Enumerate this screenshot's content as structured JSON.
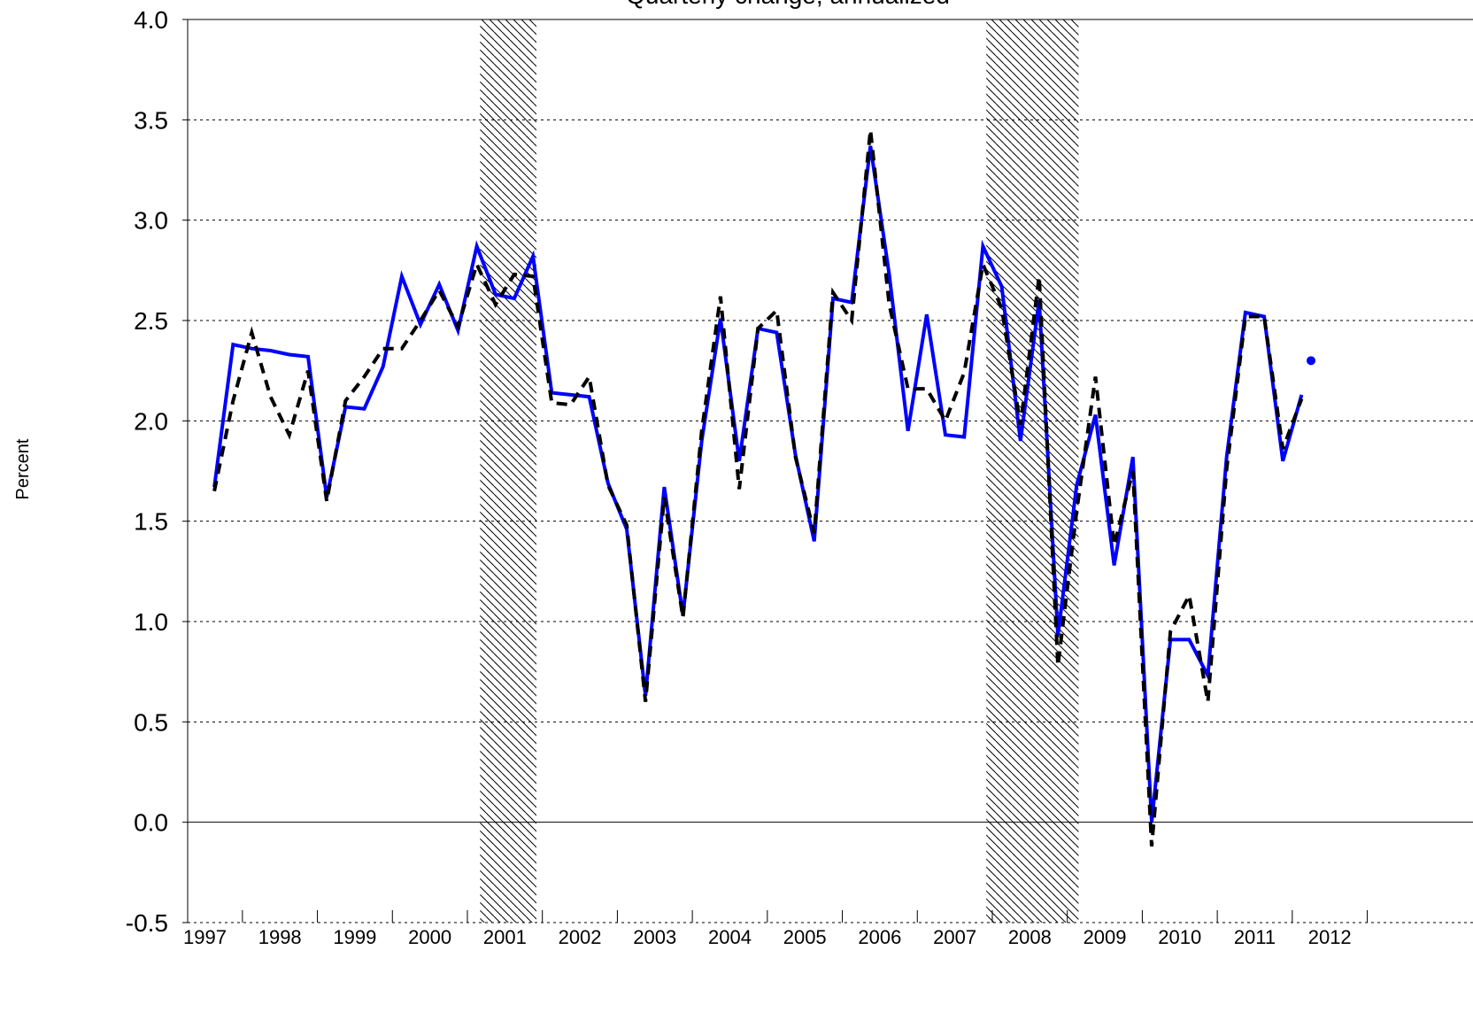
{
  "chart_data": {
    "type": "line",
    "title": "Quarterly change, annualized",
    "y_label": "Percent",
    "x": [
      1997.625,
      1997.875,
      1998.125,
      1998.375,
      1998.625,
      1998.875,
      1999.125,
      1999.375,
      1999.625,
      1999.875,
      2000.125,
      2000.375,
      2000.625,
      2000.875,
      2001.125,
      2001.375,
      2001.625,
      2001.875,
      2002.125,
      2002.375,
      2002.625,
      2002.875,
      2003.125,
      2003.375,
      2003.625,
      2003.875,
      2004.125,
      2004.375,
      2004.625,
      2004.875,
      2005.125,
      2005.375,
      2005.625,
      2005.875,
      2006.125,
      2006.375,
      2006.625,
      2006.875,
      2007.125,
      2007.375,
      2007.625,
      2007.875,
      2008.125,
      2008.375,
      2008.625,
      2008.875,
      2009.125,
      2009.375,
      2009.625,
      2009.875,
      2010.125,
      2010.375,
      2010.625,
      2010.875,
      2011.125,
      2011.375,
      2011.625,
      2011.875,
      2012.125
    ],
    "series": [
      {
        "color": "#0000ff",
        "style": "solid",
        "values": [
          1.67,
          2.38,
          2.36,
          2.35,
          2.33,
          2.32,
          1.62,
          2.07,
          2.06,
          2.27,
          2.72,
          2.48,
          2.68,
          2.45,
          2.87,
          2.63,
          2.61,
          2.82,
          2.14,
          2.13,
          2.12,
          1.69,
          1.46,
          0.63,
          1.67,
          1.03,
          1.9,
          2.51,
          1.8,
          2.46,
          2.44,
          1.83,
          1.4,
          2.61,
          2.59,
          3.37,
          2.73,
          1.95,
          2.53,
          1.93,
          1.92,
          2.87,
          2.67,
          1.9,
          2.6,
          0.93,
          1.68,
          2.03,
          1.28,
          1.82,
          0.0,
          0.91,
          0.91,
          0.73,
          1.82,
          2.54,
          2.52,
          1.8,
          2.13
        ]
      },
      {
        "color": "#000000",
        "style": "dashed",
        "values": [
          1.65,
          2.1,
          2.44,
          2.12,
          1.93,
          2.25,
          1.6,
          2.1,
          2.22,
          2.36,
          2.36,
          2.5,
          2.65,
          2.47,
          2.78,
          2.58,
          2.73,
          2.72,
          2.09,
          2.08,
          2.22,
          1.68,
          1.48,
          0.6,
          1.62,
          1.02,
          1.95,
          2.62,
          1.66,
          2.46,
          2.55,
          1.82,
          1.44,
          2.64,
          2.5,
          3.45,
          2.58,
          2.16,
          2.16,
          2.0,
          2.24,
          2.78,
          2.56,
          1.98,
          2.72,
          0.78,
          1.55,
          2.22,
          1.38,
          1.75,
          -0.12,
          0.95,
          1.13,
          0.6,
          1.76,
          2.52,
          2.52,
          1.86,
          2.11
        ]
      },
      {
        "color": "#0000ff",
        "style": "point",
        "x": [
          2012.25
        ],
        "values": [
          2.3
        ]
      }
    ],
    "recessions": [
      [
        2001.17,
        2001.92
      ],
      [
        2007.92,
        2009.15
      ]
    ],
    "xlim": [
      1997.27,
      2014.41
    ],
    "year_boundaries": [
      1998,
      1999,
      2000,
      2001,
      2002,
      2003,
      2004,
      2005,
      2006,
      2007,
      2008,
      2009,
      2010,
      2011,
      2012,
      2013
    ],
    "xticks": [
      {
        "value": 1997.5,
        "label": "1997"
      },
      {
        "value": 1998.5,
        "label": "1998"
      },
      {
        "value": 1999.5,
        "label": "1999"
      },
      {
        "value": 2000.5,
        "label": "2000"
      },
      {
        "value": 2001.5,
        "label": "2001"
      },
      {
        "value": 2002.5,
        "label": "2002"
      },
      {
        "value": 2003.5,
        "label": "2003"
      },
      {
        "value": 2004.5,
        "label": "2004"
      },
      {
        "value": 2005.5,
        "label": "2005"
      },
      {
        "value": 2006.5,
        "label": "2006"
      },
      {
        "value": 2007.5,
        "label": "2007"
      },
      {
        "value": 2008.5,
        "label": "2008"
      },
      {
        "value": 2009.5,
        "label": "2009"
      },
      {
        "value": 2010.5,
        "label": "2010"
      },
      {
        "value": 2011.5,
        "label": "2011"
      },
      {
        "value": 2012.5,
        "label": "2012"
      }
    ],
    "ylim": [
      -0.5,
      4.0
    ],
    "yticks": [
      {
        "value": 4.0,
        "label": "4.0"
      },
      3.5,
      {
        "value": 3.0,
        "label": "3.0"
      },
      2.5,
      {
        "value": 2.0,
        "label": "2.0"
      },
      1.5,
      {
        "value": 1.0,
        "label": "1.0"
      },
      0.5,
      {
        "value": 0.0,
        "label": "0.0"
      },
      -0.5
    ],
    "grid": true
  }
}
